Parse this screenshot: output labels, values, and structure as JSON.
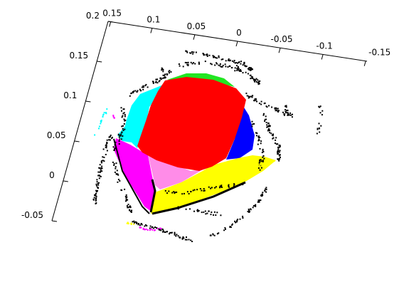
{
  "chart_data": {
    "type": "scatter",
    "projection": "3d",
    "title": "",
    "xlabel": "",
    "ylabel": "",
    "zlabel": "",
    "grid": false,
    "xlim": [
      -0.15,
      0.15
    ],
    "ylim": [
      -0.05,
      0.2
    ],
    "x_ticks": [
      "0.15",
      "0.1",
      "0.05",
      "0",
      "-0.05",
      "-0.1",
      "-0.15"
    ],
    "y_ticks": [
      "0.2",
      "0.15",
      "0.1",
      "0.05",
      "0",
      "-0.05"
    ],
    "series": [
      {
        "color": "#000000",
        "role": "background point cloud"
      },
      {
        "color": "#ff0000",
        "role": "segment"
      },
      {
        "color": "#00dd00",
        "role": "segment"
      },
      {
        "color": "#00ffff",
        "role": "segment"
      },
      {
        "color": "#0000ff",
        "role": "segment"
      },
      {
        "color": "#ff00ff",
        "role": "segment"
      },
      {
        "color": "#ff88ee",
        "role": "segment"
      },
      {
        "color": "#ffff00",
        "role": "segment"
      }
    ]
  }
}
